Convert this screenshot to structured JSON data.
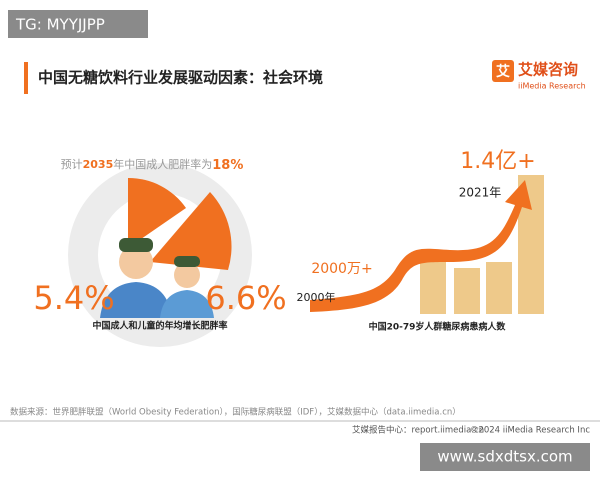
{
  "watermark_top": "TG: MYYJJPP",
  "header": {
    "title": "中国无糖饮料行业发展驱动因素：社会环境",
    "logo_icon": "艾",
    "logo_name": "艾媒咨询",
    "logo_sub": "iiMedia Research"
  },
  "obesity": {
    "forecast_parts": [
      "预计",
      "2035",
      "年中国成人肥胖率为",
      "18%"
    ],
    "adult_rate": "5.4%",
    "child_rate": "6.6%",
    "caption": "中国成人和儿童的年均增长肥胖率"
  },
  "diabetes": {
    "top_value": "1.4亿+",
    "top_year": "2021年",
    "start_value": "2000万+",
    "start_year": "2000年",
    "caption": "中国20-79岁人群糖尿病患病人数"
  },
  "source": "数据来源：世界肥胖联盟（World Obesity Federation），国际糖尿病联盟（IDF），艾媒数据中心（data.iimedia.cn）",
  "footer": {
    "report_center": "艾媒报告中心：report.iimedia.cn",
    "copyright": "©2024  iiMedia Research  Inc"
  },
  "watermark_bottom": "www.sdxdtsx.com"
}
